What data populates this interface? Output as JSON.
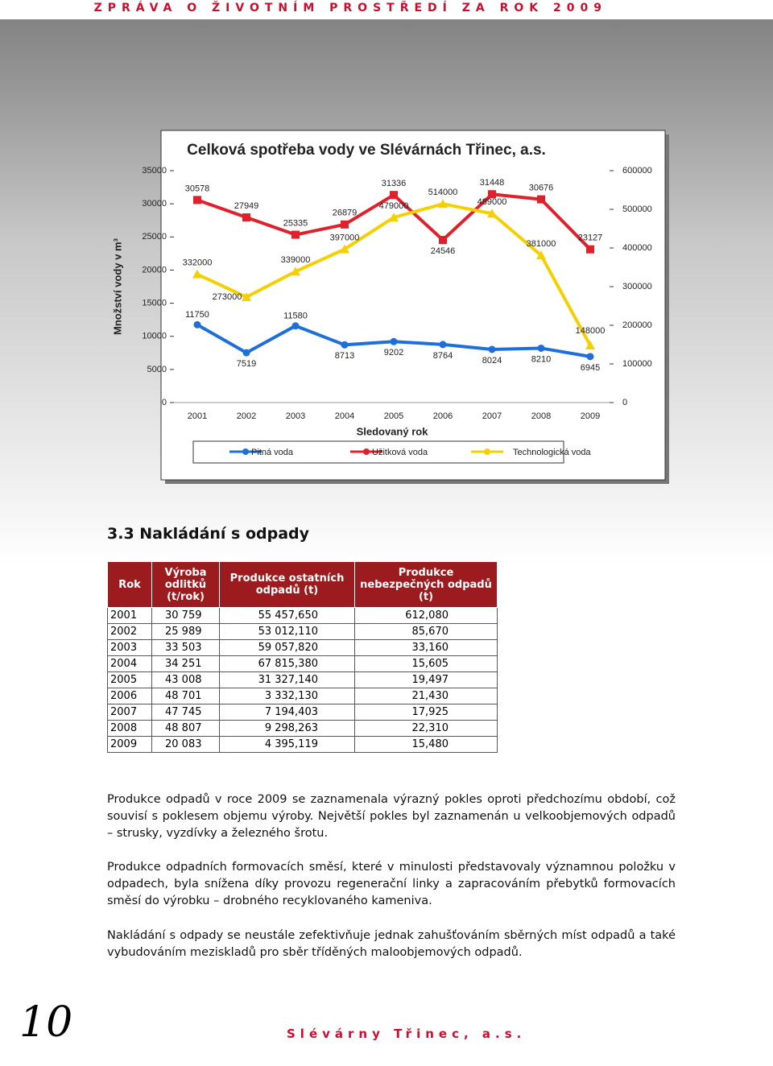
{
  "header": {
    "title": "ZPRÁVA O ŽIVOTNÍM PROSTŘEDÍ ZA ROK 2009"
  },
  "chart_data": {
    "type": "line",
    "title": "Celková spotřeba vody ve Slévárnách Třinec, a.s.",
    "xlabel": "Sledovaný rok",
    "ylabel": "Množství vody v m³",
    "categories": [
      "2001",
      "2002",
      "2003",
      "2004",
      "2005",
      "2006",
      "2007",
      "2008",
      "2009"
    ],
    "series": [
      {
        "name": "Pitná voda",
        "color": "#1e6fd9",
        "values": [
          11750,
          7519,
          11580,
          8713,
          9202,
          8764,
          8024,
          8210,
          6945
        ]
      },
      {
        "name": "Užitková voda",
        "color": "#e0202a",
        "values": [
          30578,
          27949,
          25335,
          26879,
          31336,
          24546,
          31448,
          30676,
          23127
        ]
      },
      {
        "name": "Technologická voda",
        "color": "#f5d000",
        "axis": "y2",
        "values": [
          332000,
          273000,
          339000,
          397000,
          479000,
          514000,
          489000,
          381000,
          148000
        ]
      }
    ],
    "ylim": [
      0,
      35000
    ],
    "yticks": [
      0,
      5000,
      10000,
      15000,
      20000,
      25000,
      30000,
      35000
    ],
    "y2lim": [
      0,
      600000
    ],
    "y2ticks": [
      0,
      100000,
      200000,
      300000,
      400000,
      500000,
      600000
    ],
    "legend": "bottom"
  },
  "section": {
    "title": "3.3 Nakládání s odpady"
  },
  "table": {
    "columns": [
      "Rok",
      "Výroba odlitků (t/rok)",
      "Produkce ostatních odpadů (t)",
      "Produkce nebezpečných odpadů (t)"
    ],
    "rows": [
      [
        "2001",
        "30 759",
        "55 457,650",
        "612,080"
      ],
      [
        "2002",
        "25 989",
        "53 012,110",
        "85,670"
      ],
      [
        "2003",
        "33 503",
        "59 057,820",
        "33,160"
      ],
      [
        "2004",
        "34 251",
        "67 815,380",
        "15,605"
      ],
      [
        "2005",
        "43 008",
        "31 327,140",
        "19,497"
      ],
      [
        "2006",
        "48 701",
        "3 332,130",
        "21,430"
      ],
      [
        "2007",
        "47 745",
        "7 194,403",
        "17,925"
      ],
      [
        "2008",
        "48 807",
        "9 298,263",
        "22,310"
      ],
      [
        "2009",
        "20 083",
        "4 395,119",
        "15,480"
      ]
    ]
  },
  "paragraphs": [
    "Produkce odpadů v roce 2009 se zaznamenala výrazný pokles oproti předchozímu období, což souvisí s poklesem objemu výroby. Největší pokles byl zaznamenán u velkoobjemových odpadů – strusky, vyzdívky a železného šrotu.",
    "Produkce odpadních formovacích směsí, které v minulosti představovaly významnou položku v odpadech, byla snížena díky provozu regenerační linky a zapracováním přebytků formovacích směsí do výrobku – drobného recyklovaného kameniva.",
    "Nakládání s odpady se neustále zefektivňuje jednak zahušťováním sběrných míst odpadů a také vybudováním meziskladů pro sběr tříděných maloobjemových odpadů."
  ],
  "footer": {
    "page": "10",
    "company": "Slévárny Třinec, a.s."
  }
}
